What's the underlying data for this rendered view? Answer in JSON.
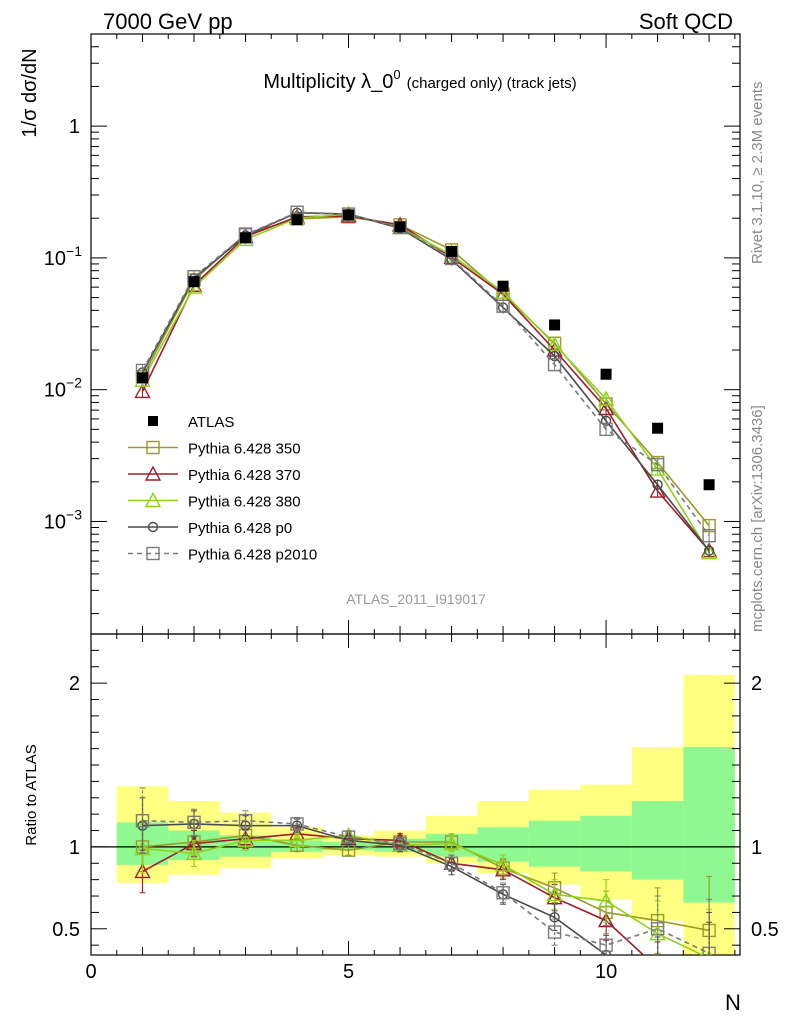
{
  "header": {
    "left": "7000 GeV pp",
    "right": "Soft QCD"
  },
  "side_labels": {
    "rivet": "Rivet 3.1.10, ≥ 2.3M events",
    "mcplots": "mcplots.cern.ch [arXiv:1306.3436]"
  },
  "chart_data": {
    "type": "line",
    "title_main": "Multiplicity λ_0",
    "title_sup": "0",
    "title_suffix": "(charged only) (track jets)",
    "analysis_tag": "ATLAS_2011_I919017",
    "ylabel": "1/σ dσ/dN",
    "ratio_ylabel": "Ratio to ATLAS",
    "xlabel": "N",
    "xlim": [
      0,
      12.6
    ],
    "ylim_main": [
      0.00014,
      5
    ],
    "yscale_main": "log",
    "ylim_ratio": [
      0.34,
      2.3
    ],
    "x_ticks": [
      0,
      5,
      10
    ],
    "y_ticks_main": [
      {
        "value": 1,
        "label": "1",
        "exp": ""
      },
      {
        "value": 0.1,
        "label": "10",
        "exp": "−1"
      },
      {
        "value": 0.01,
        "label": "10",
        "exp": "−2"
      },
      {
        "value": 0.001,
        "label": "10",
        "exp": "−3"
      }
    ],
    "y_ticks_ratio": [
      {
        "value": 2,
        "label": "2"
      },
      {
        "value": 1,
        "label": "1"
      },
      {
        "value": 0.5,
        "label": "0.5"
      }
    ],
    "legend_position": "lower-left",
    "data": {
      "name": "ATLAS",
      "x": [
        1,
        2,
        3,
        4,
        5,
        6,
        7,
        8,
        9,
        10,
        11,
        12
      ],
      "y": [
        0.0123,
        0.066,
        0.142,
        0.195,
        0.212,
        0.172,
        0.112,
        0.061,
        0.031,
        0.0131,
        0.0051,
        0.0019
      ]
    },
    "bands": {
      "inner": [
        {
          "x0": 0.5,
          "x1": 1.5,
          "lo": 0.89,
          "hi": 1.15
        },
        {
          "x0": 1.5,
          "x1": 2.5,
          "lo": 0.92,
          "hi": 1.1
        },
        {
          "x0": 2.5,
          "x1": 3.5,
          "lo": 0.94,
          "hi": 1.07
        },
        {
          "x0": 3.5,
          "x1": 4.5,
          "lo": 0.97,
          "hi": 1.04
        },
        {
          "x0": 4.5,
          "x1": 5.5,
          "lo": 0.98,
          "hi": 1.03
        },
        {
          "x0": 5.5,
          "x1": 6.5,
          "lo": 0.97,
          "hi": 1.05
        },
        {
          "x0": 6.5,
          "x1": 7.5,
          "lo": 0.94,
          "hi": 1.08
        },
        {
          "x0": 7.5,
          "x1": 8.5,
          "lo": 0.91,
          "hi": 1.12
        },
        {
          "x0": 8.5,
          "x1": 9.5,
          "lo": 0.88,
          "hi": 1.16
        },
        {
          "x0": 9.5,
          "x1": 10.5,
          "lo": 0.85,
          "hi": 1.19
        },
        {
          "x0": 10.5,
          "x1": 11.5,
          "lo": 0.8,
          "hi": 1.28
        },
        {
          "x0": 11.5,
          "x1": 12.5,
          "lo": 0.66,
          "hi": 1.61
        }
      ],
      "outer": [
        {
          "x0": 0.5,
          "x1": 1.5,
          "lo": 0.78,
          "hi": 1.37
        },
        {
          "x0": 1.5,
          "x1": 2.5,
          "lo": 0.83,
          "hi": 1.28
        },
        {
          "x0": 2.5,
          "x1": 3.5,
          "lo": 0.87,
          "hi": 1.21
        },
        {
          "x0": 3.5,
          "x1": 4.5,
          "lo": 0.93,
          "hi": 1.12
        },
        {
          "x0": 4.5,
          "x1": 5.5,
          "lo": 0.95,
          "hi": 1.07
        },
        {
          "x0": 5.5,
          "x1": 6.5,
          "lo": 0.94,
          "hi": 1.1
        },
        {
          "x0": 6.5,
          "x1": 7.5,
          "lo": 0.9,
          "hi": 1.19
        },
        {
          "x0": 7.5,
          "x1": 8.5,
          "lo": 0.84,
          "hi": 1.28
        },
        {
          "x0": 8.5,
          "x1": 9.5,
          "lo": 0.77,
          "hi": 1.35
        },
        {
          "x0": 9.5,
          "x1": 10.5,
          "lo": 0.68,
          "hi": 1.38
        },
        {
          "x0": 10.5,
          "x1": 11.5,
          "lo": 0.55,
          "hi": 1.61
        },
        {
          "x0": 11.5,
          "x1": 12.5,
          "lo": 0.34,
          "hi": 2.05
        }
      ]
    },
    "series": [
      {
        "name": "Pythia 6.428 350",
        "color": "#9a9a2a",
        "marker": "square",
        "dash": "",
        "x": [
          1,
          2,
          3,
          4,
          5,
          6,
          7,
          8,
          9,
          10,
          11,
          12
        ],
        "y": [
          0.0125,
          0.068,
          0.152,
          0.198,
          0.205,
          0.178,
          0.115,
          0.053,
          0.0225,
          0.0078,
          0.0028,
          0.00093
        ],
        "ratio": [
          1.0,
          1.03,
          1.07,
          1.01,
          0.98,
          1.03,
          1.03,
          0.87,
          0.75,
          0.6,
          0.55,
          0.49
        ],
        "ratio_err": [
          0.15,
          0.08,
          0.06,
          0.04,
          0.03,
          0.04,
          0.05,
          0.06,
          0.09,
          0.13,
          0.2,
          0.33
        ]
      },
      {
        "name": "Pythia 6.428 370",
        "color": "#a01c2c",
        "marker": "triangle",
        "dash": "",
        "x": [
          1,
          2,
          3,
          4,
          5,
          6,
          7,
          8,
          9,
          10,
          11,
          12
        ],
        "y": [
          0.0097,
          0.062,
          0.145,
          0.205,
          0.208,
          0.178,
          0.101,
          0.053,
          0.02,
          0.0072,
          0.0017,
          0.0006
        ],
        "ratio": [
          0.85,
          1.02,
          1.05,
          1.08,
          1.05,
          1.04,
          0.9,
          0.86,
          0.69,
          0.55,
          0.26,
          0.24
        ],
        "ratio_err": [
          0.13,
          0.08,
          0.06,
          0.04,
          0.03,
          0.04,
          0.05,
          0.06,
          0.08,
          0.12,
          0.16,
          0.3
        ]
      },
      {
        "name": "Pythia 6.428 380",
        "color": "#8ed21c",
        "marker": "triangle",
        "dash": "",
        "x": [
          1,
          2,
          3,
          4,
          5,
          6,
          7,
          8,
          9,
          10,
          11,
          12
        ],
        "y": [
          0.0118,
          0.06,
          0.138,
          0.2,
          0.215,
          0.17,
          0.105,
          0.055,
          0.022,
          0.0085,
          0.0025,
          0.00058
        ],
        "ratio": [
          0.99,
          0.96,
          1.04,
          1.04,
          1.07,
          1.01,
          1.02,
          0.89,
          0.71,
          0.67,
          0.47,
          0.32
        ],
        "ratio_err": [
          0.15,
          0.08,
          0.06,
          0.04,
          0.03,
          0.04,
          0.05,
          0.06,
          0.09,
          0.13,
          0.2,
          0.3
        ]
      },
      {
        "name": "Pythia 6.428 p0",
        "color": "#4a4a4a",
        "marker": "circle",
        "dash": "",
        "x": [
          1,
          2,
          3,
          4,
          5,
          6,
          7,
          8,
          9,
          10,
          11,
          12
        ],
        "y": [
          0.0135,
          0.07,
          0.148,
          0.22,
          0.215,
          0.168,
          0.097,
          0.042,
          0.018,
          0.0058,
          0.0019,
          0.0006
        ],
        "ratio": [
          1.13,
          1.14,
          1.13,
          1.13,
          1.04,
          1.01,
          0.88,
          0.71,
          0.57,
          0.34,
          0.3,
          0.3
        ],
        "ratio_err": [
          0.17,
          0.08,
          0.06,
          0.04,
          0.03,
          0.04,
          0.05,
          0.06,
          0.08,
          0.12,
          0.15,
          0.3
        ]
      },
      {
        "name": "Pythia 6.428 p2010",
        "color": "#7a7a7a",
        "marker": "square",
        "dash": "5,4",
        "x": [
          1,
          2,
          3,
          4,
          5,
          6,
          7,
          8,
          9,
          10,
          11,
          12
        ],
        "y": [
          0.014,
          0.072,
          0.15,
          0.222,
          0.215,
          0.17,
          0.099,
          0.043,
          0.0155,
          0.005,
          0.0027,
          0.00078
        ],
        "ratio": [
          1.16,
          1.15,
          1.16,
          1.14,
          1.06,
          1.02,
          0.9,
          0.72,
          0.48,
          0.4,
          0.5,
          0.35
        ],
        "ratio_err": [
          0.2,
          0.08,
          0.06,
          0.04,
          0.03,
          0.04,
          0.05,
          0.06,
          0.08,
          0.12,
          0.2,
          0.33
        ]
      }
    ]
  }
}
